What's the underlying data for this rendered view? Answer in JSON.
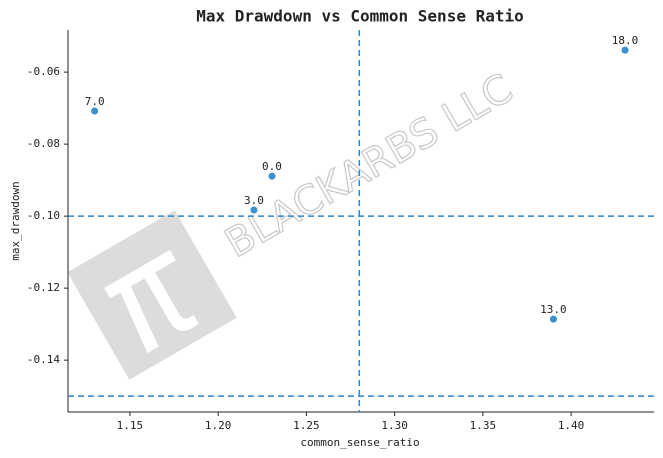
{
  "chart_data": {
    "type": "scatter",
    "title": "Max Drawdown vs Common Sense Ratio",
    "x_label": "common_sense_ratio",
    "y_label": "max_drawdown",
    "watermark": "BLACKARBS LLC",
    "series": [
      {
        "color": "#3a8fd0",
        "x": [
          1.13,
          1.2305,
          1.2203,
          1.39,
          1.4306
        ],
        "values": [
          -0.0708,
          -0.0889,
          -0.0983,
          -0.1286,
          -0.0539
        ],
        "point_labels": [
          "7.0",
          "0.0",
          "3.0",
          "13.0",
          "18.0"
        ]
      }
    ],
    "vlines": [
      1.28
    ],
    "hlines": [
      -0.1,
      -0.15
    ],
    "line_color": "#2a8ac8",
    "xlim": [
      1.1149,
      1.447
    ],
    "ylim": [
      -0.1544,
      -0.0483
    ],
    "xticks": [
      1.15,
      {
        "value": 1.2,
        "label": "1.20"
      },
      1.25,
      {
        "value": 1.3,
        "label": "1.30"
      },
      1.35,
      {
        "value": 1.4,
        "label": "1.40"
      }
    ],
    "yticks": [
      -0.06,
      {
        "value": -0.08,
        "label": "-0.08"
      },
      {
        "value": -0.1,
        "label": "-0.10"
      },
      -0.12,
      -0.14
    ]
  }
}
